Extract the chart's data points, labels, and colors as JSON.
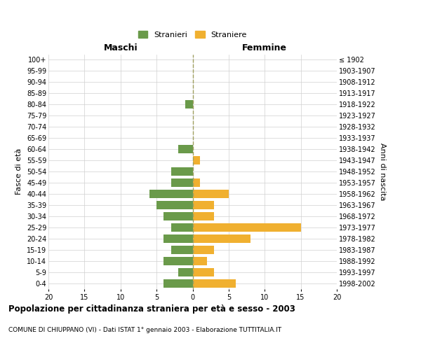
{
  "age_groups": [
    "0-4",
    "5-9",
    "10-14",
    "15-19",
    "20-24",
    "25-29",
    "30-34",
    "35-39",
    "40-44",
    "45-49",
    "50-54",
    "55-59",
    "60-64",
    "65-69",
    "70-74",
    "75-79",
    "80-84",
    "85-89",
    "90-94",
    "95-99",
    "100+"
  ],
  "birth_years": [
    "1998-2002",
    "1993-1997",
    "1988-1992",
    "1983-1987",
    "1978-1982",
    "1973-1977",
    "1968-1972",
    "1963-1967",
    "1958-1962",
    "1953-1957",
    "1948-1952",
    "1943-1947",
    "1938-1942",
    "1933-1937",
    "1928-1932",
    "1923-1927",
    "1918-1922",
    "1913-1917",
    "1908-1912",
    "1903-1907",
    "≤ 1902"
  ],
  "males": [
    4,
    2,
    4,
    3,
    4,
    3,
    4,
    5,
    6,
    3,
    3,
    0,
    2,
    0,
    0,
    0,
    1,
    0,
    0,
    0,
    0
  ],
  "females": [
    6,
    3,
    2,
    3,
    8,
    15,
    3,
    3,
    5,
    1,
    0,
    1,
    0,
    0,
    0,
    0,
    0,
    0,
    0,
    0,
    0
  ],
  "male_color": "#6a9a4a",
  "female_color": "#f0b030",
  "center_line_color": "#a0a060",
  "grid_color": "#d0d0d0",
  "title": "Popolazione per cittadinanza straniera per età e sesso - 2003",
  "subtitle": "COMUNE DI CHIUPPANO (VI) - Dati ISTAT 1° gennaio 2003 - Elaborazione TUTTITALIA.IT",
  "ylabel_left": "Fasce di età",
  "ylabel_right": "Anni di nascita",
  "xlabel_maschi": "Maschi",
  "xlabel_femmine": "Femmine",
  "legend_male": "Stranieri",
  "legend_female": "Straniere",
  "xlim": 20,
  "background_color": "#ffffff"
}
